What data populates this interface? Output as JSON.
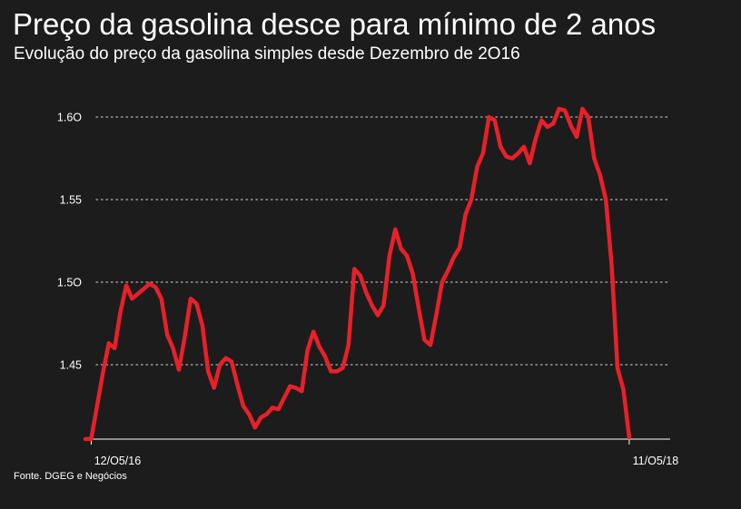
{
  "header": {
    "title": "Preço da gasolina desce para mínimo de 2 anos",
    "subtitle": "Evolução do preço da gasolina simples desde Dezembro de 2O16"
  },
  "footer": {
    "source": "Fonte. DGEG e Negócios"
  },
  "chart_data": {
    "type": "line",
    "title": "Preço da gasolina desce para mínimo de 2 anos",
    "subtitle": "Evolução do preço da gasolina simples desde Dezembro de 2O16",
    "xlabel": "",
    "ylabel": "",
    "ylim": [
      1.405,
      1.62
    ],
    "yticks": [
      1.45,
      1.5,
      1.55,
      1.6
    ],
    "ytick_labels": [
      "1.45",
      "1.5O",
      "1.55",
      "1.6O"
    ],
    "x_range": [
      0,
      100
    ],
    "xticks": [
      {
        "x": 1,
        "label": "12/O5/16"
      },
      {
        "x": 93,
        "label": "11/O5/18"
      }
    ],
    "grid": "horizontal-dotted",
    "legend": "none",
    "line_color": "#e8202a",
    "gridline_color": "#9a9a9a",
    "series": [
      {
        "name": "",
        "x": [
          0,
          1,
          2,
          3,
          4,
          5,
          6,
          7,
          8,
          9,
          10,
          11,
          12,
          13,
          14,
          15,
          16,
          17,
          18,
          19,
          20,
          21,
          22,
          23,
          24,
          25,
          26,
          27,
          28,
          29,
          30,
          31,
          32,
          33,
          34,
          35,
          36,
          37,
          38,
          39,
          40,
          41,
          42,
          43,
          44,
          45,
          46,
          47,
          48,
          49,
          50,
          51,
          52,
          53,
          54,
          55,
          56,
          57,
          58,
          59,
          60,
          61,
          62,
          63,
          64,
          65,
          66,
          67,
          68,
          69,
          70,
          71,
          72,
          73,
          74,
          75,
          76,
          77,
          78,
          79,
          80,
          81,
          82,
          83,
          84,
          85,
          86,
          87,
          88,
          89,
          90,
          91,
          92,
          93
        ],
        "values": [
          1.405,
          1.405,
          1.425,
          1.445,
          1.463,
          1.46,
          1.482,
          1.498,
          1.49,
          1.493,
          1.496,
          1.499,
          1.497,
          1.49,
          1.468,
          1.46,
          1.447,
          1.467,
          1.49,
          1.487,
          1.474,
          1.446,
          1.436,
          1.45,
          1.454,
          1.452,
          1.438,
          1.425,
          1.42,
          1.412,
          1.418,
          1.42,
          1.424,
          1.423,
          1.43,
          1.437,
          1.436,
          1.434,
          1.459,
          1.47,
          1.461,
          1.455,
          1.446,
          1.446,
          1.448,
          1.462,
          1.508,
          1.504,
          1.494,
          1.486,
          1.48,
          1.486,
          1.516,
          1.532,
          1.52,
          1.516,
          1.505,
          1.484,
          1.465,
          1.462,
          1.48,
          1.5,
          1.507,
          1.515,
          1.521,
          1.541,
          1.55,
          1.57,
          1.578,
          1.6,
          1.598,
          1.582,
          1.576,
          1.575,
          1.578,
          1.582,
          1.572,
          1.587,
          1.598,
          1.594,
          1.596,
          1.605,
          1.604,
          1.595,
          1.588,
          1.605,
          1.6,
          1.575,
          1.565,
          1.55,
          1.51,
          1.448,
          1.435,
          1.406
        ]
      }
    ]
  }
}
